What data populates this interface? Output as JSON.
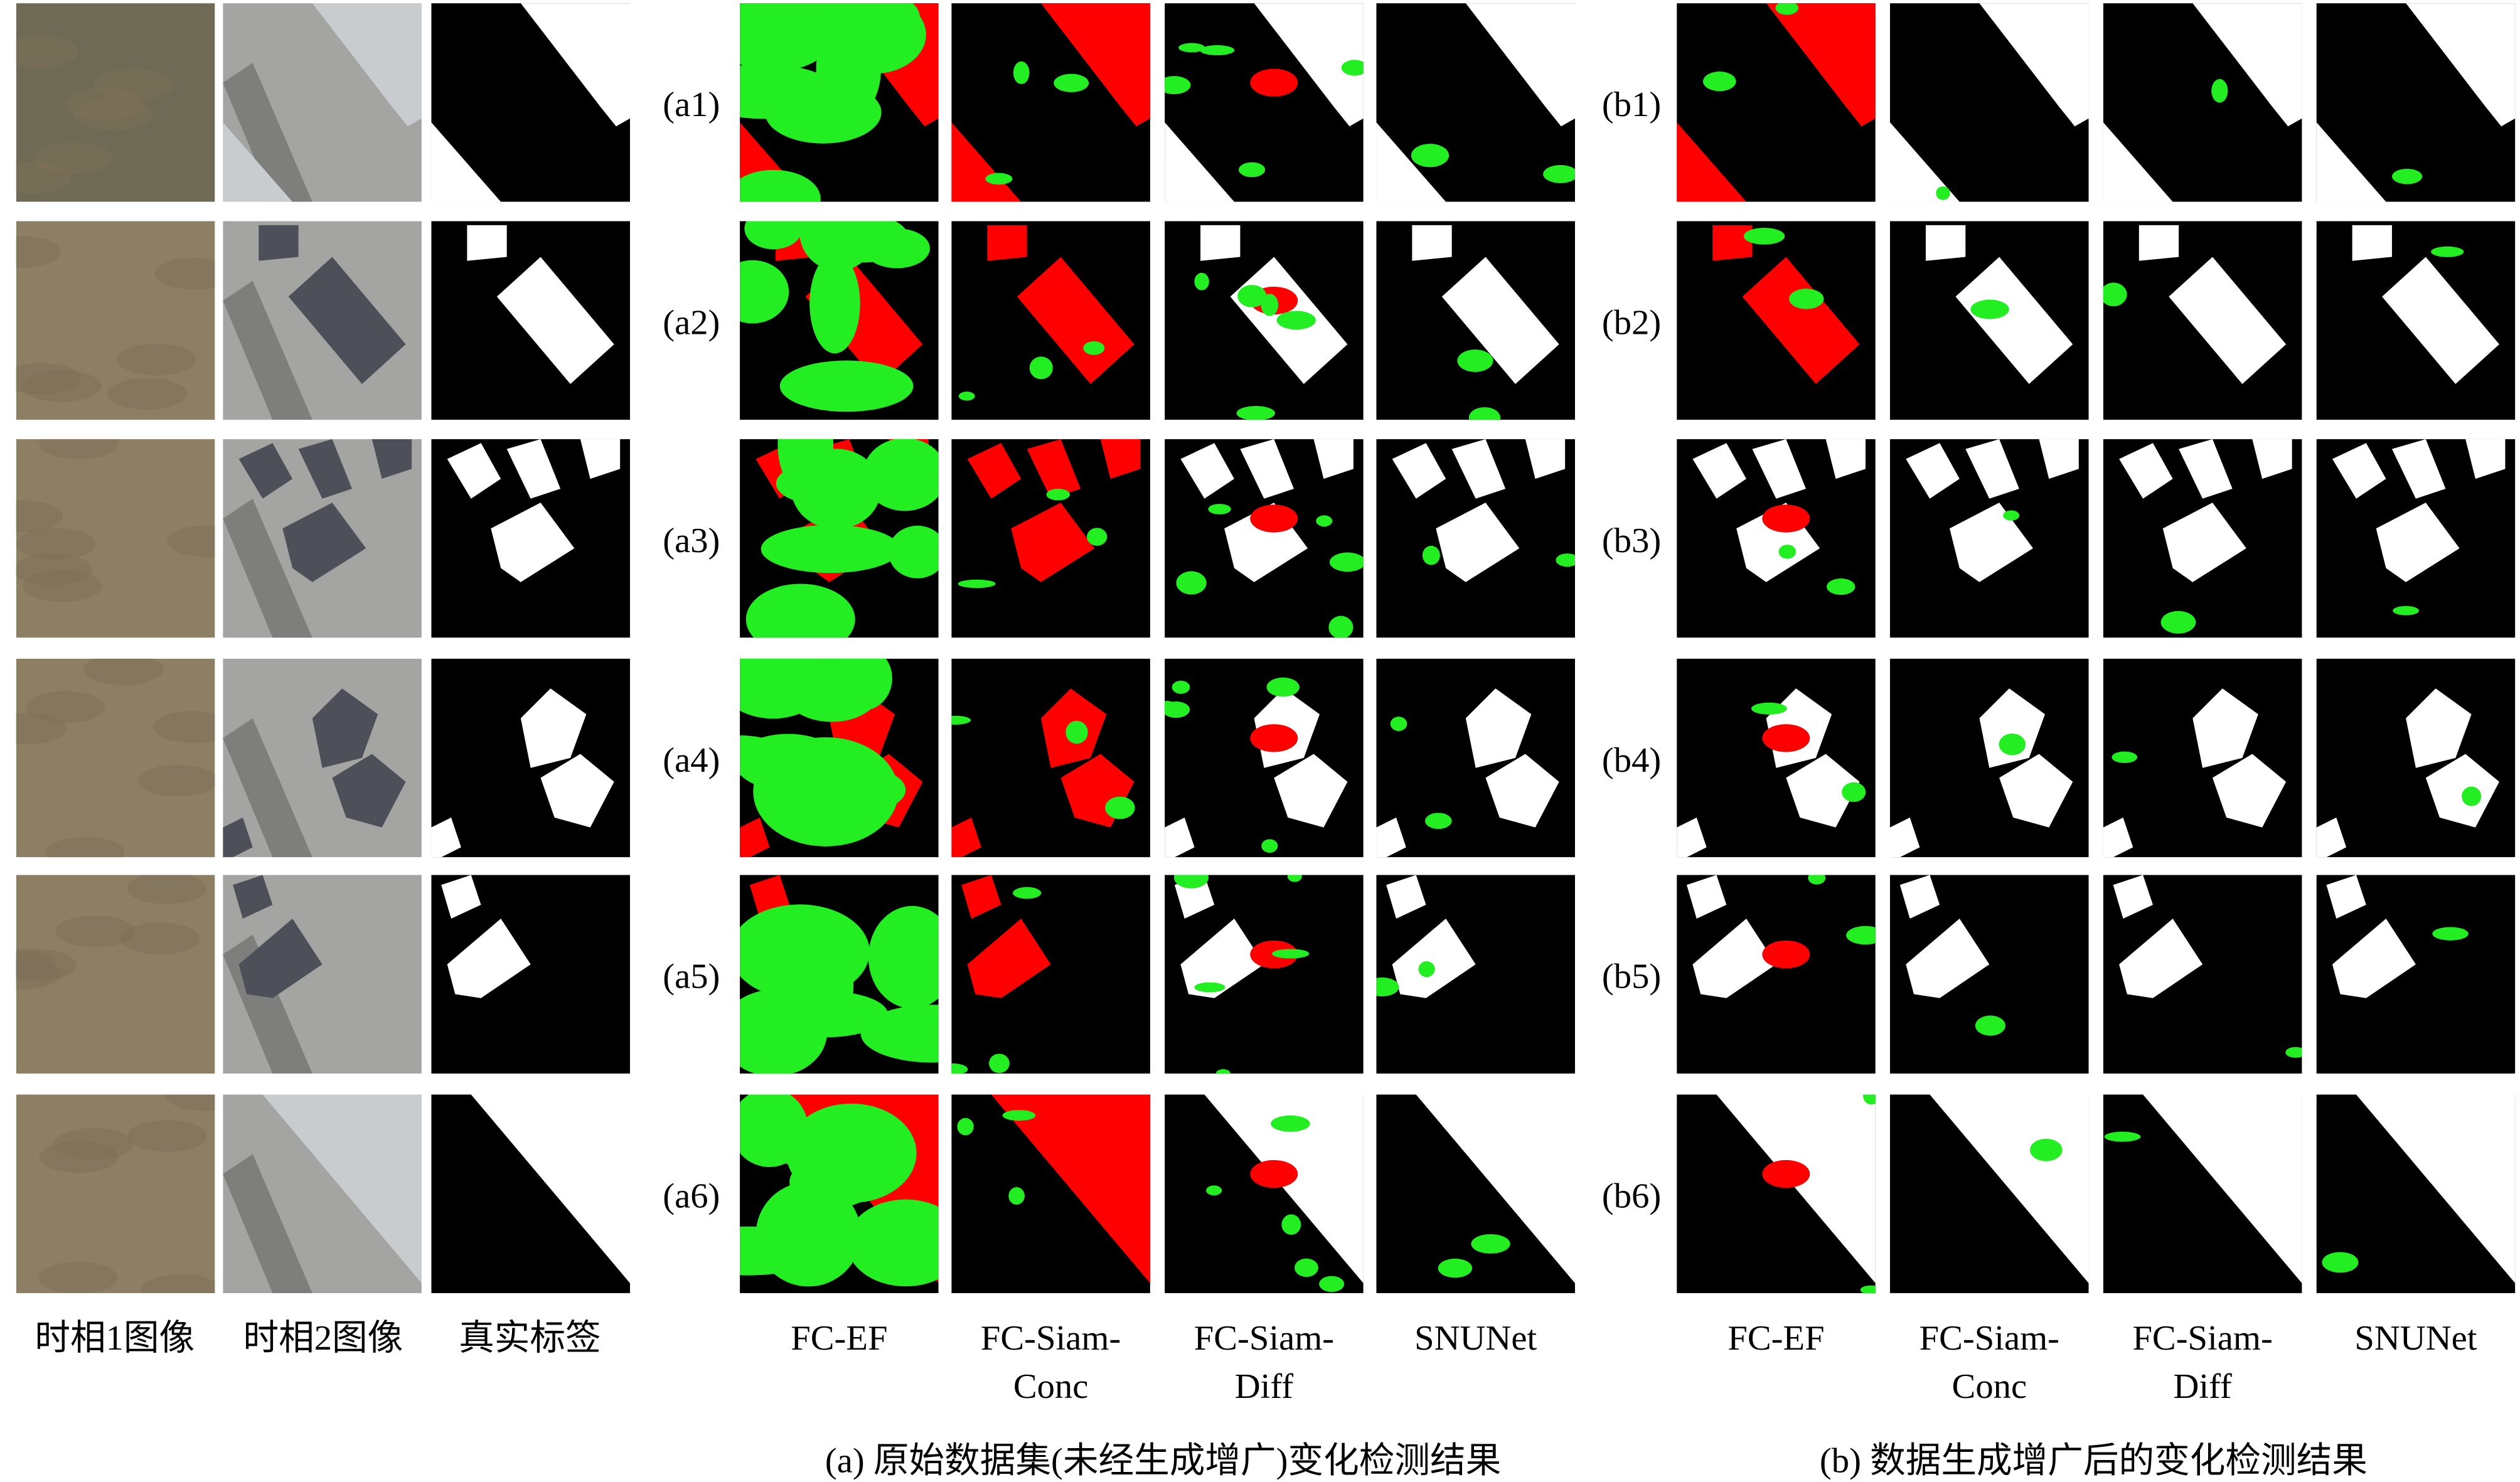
{
  "columns": [
    "时相1图像",
    "时相2图像",
    "真实标签"
  ],
  "panel_a": {
    "rows": [
      "(a1)",
      "(a2)",
      "(a3)",
      "(a4)",
      "(a5)",
      "(a6)"
    ],
    "methods": [
      [
        "FC-EF"
      ],
      [
        "FC-Siam-",
        "Conc"
      ],
      [
        "FC-Siam-",
        "Diff"
      ],
      [
        "SNUNet"
      ]
    ],
    "caption": "(a) 原始数据集(未经生成增广)变化检测结果"
  },
  "panel_b": {
    "rows": [
      "(b1)",
      "(b2)",
      "(b3)",
      "(b4)",
      "(b5)",
      "(b6)"
    ],
    "methods": [
      [
        "FC-EF"
      ],
      [
        "FC-Siam-",
        "Conc"
      ],
      [
        "FC-Siam-",
        "Diff"
      ],
      [
        "SNUNet"
      ]
    ],
    "caption": "(b) 数据生成增广后的变化检测结果"
  }
}
